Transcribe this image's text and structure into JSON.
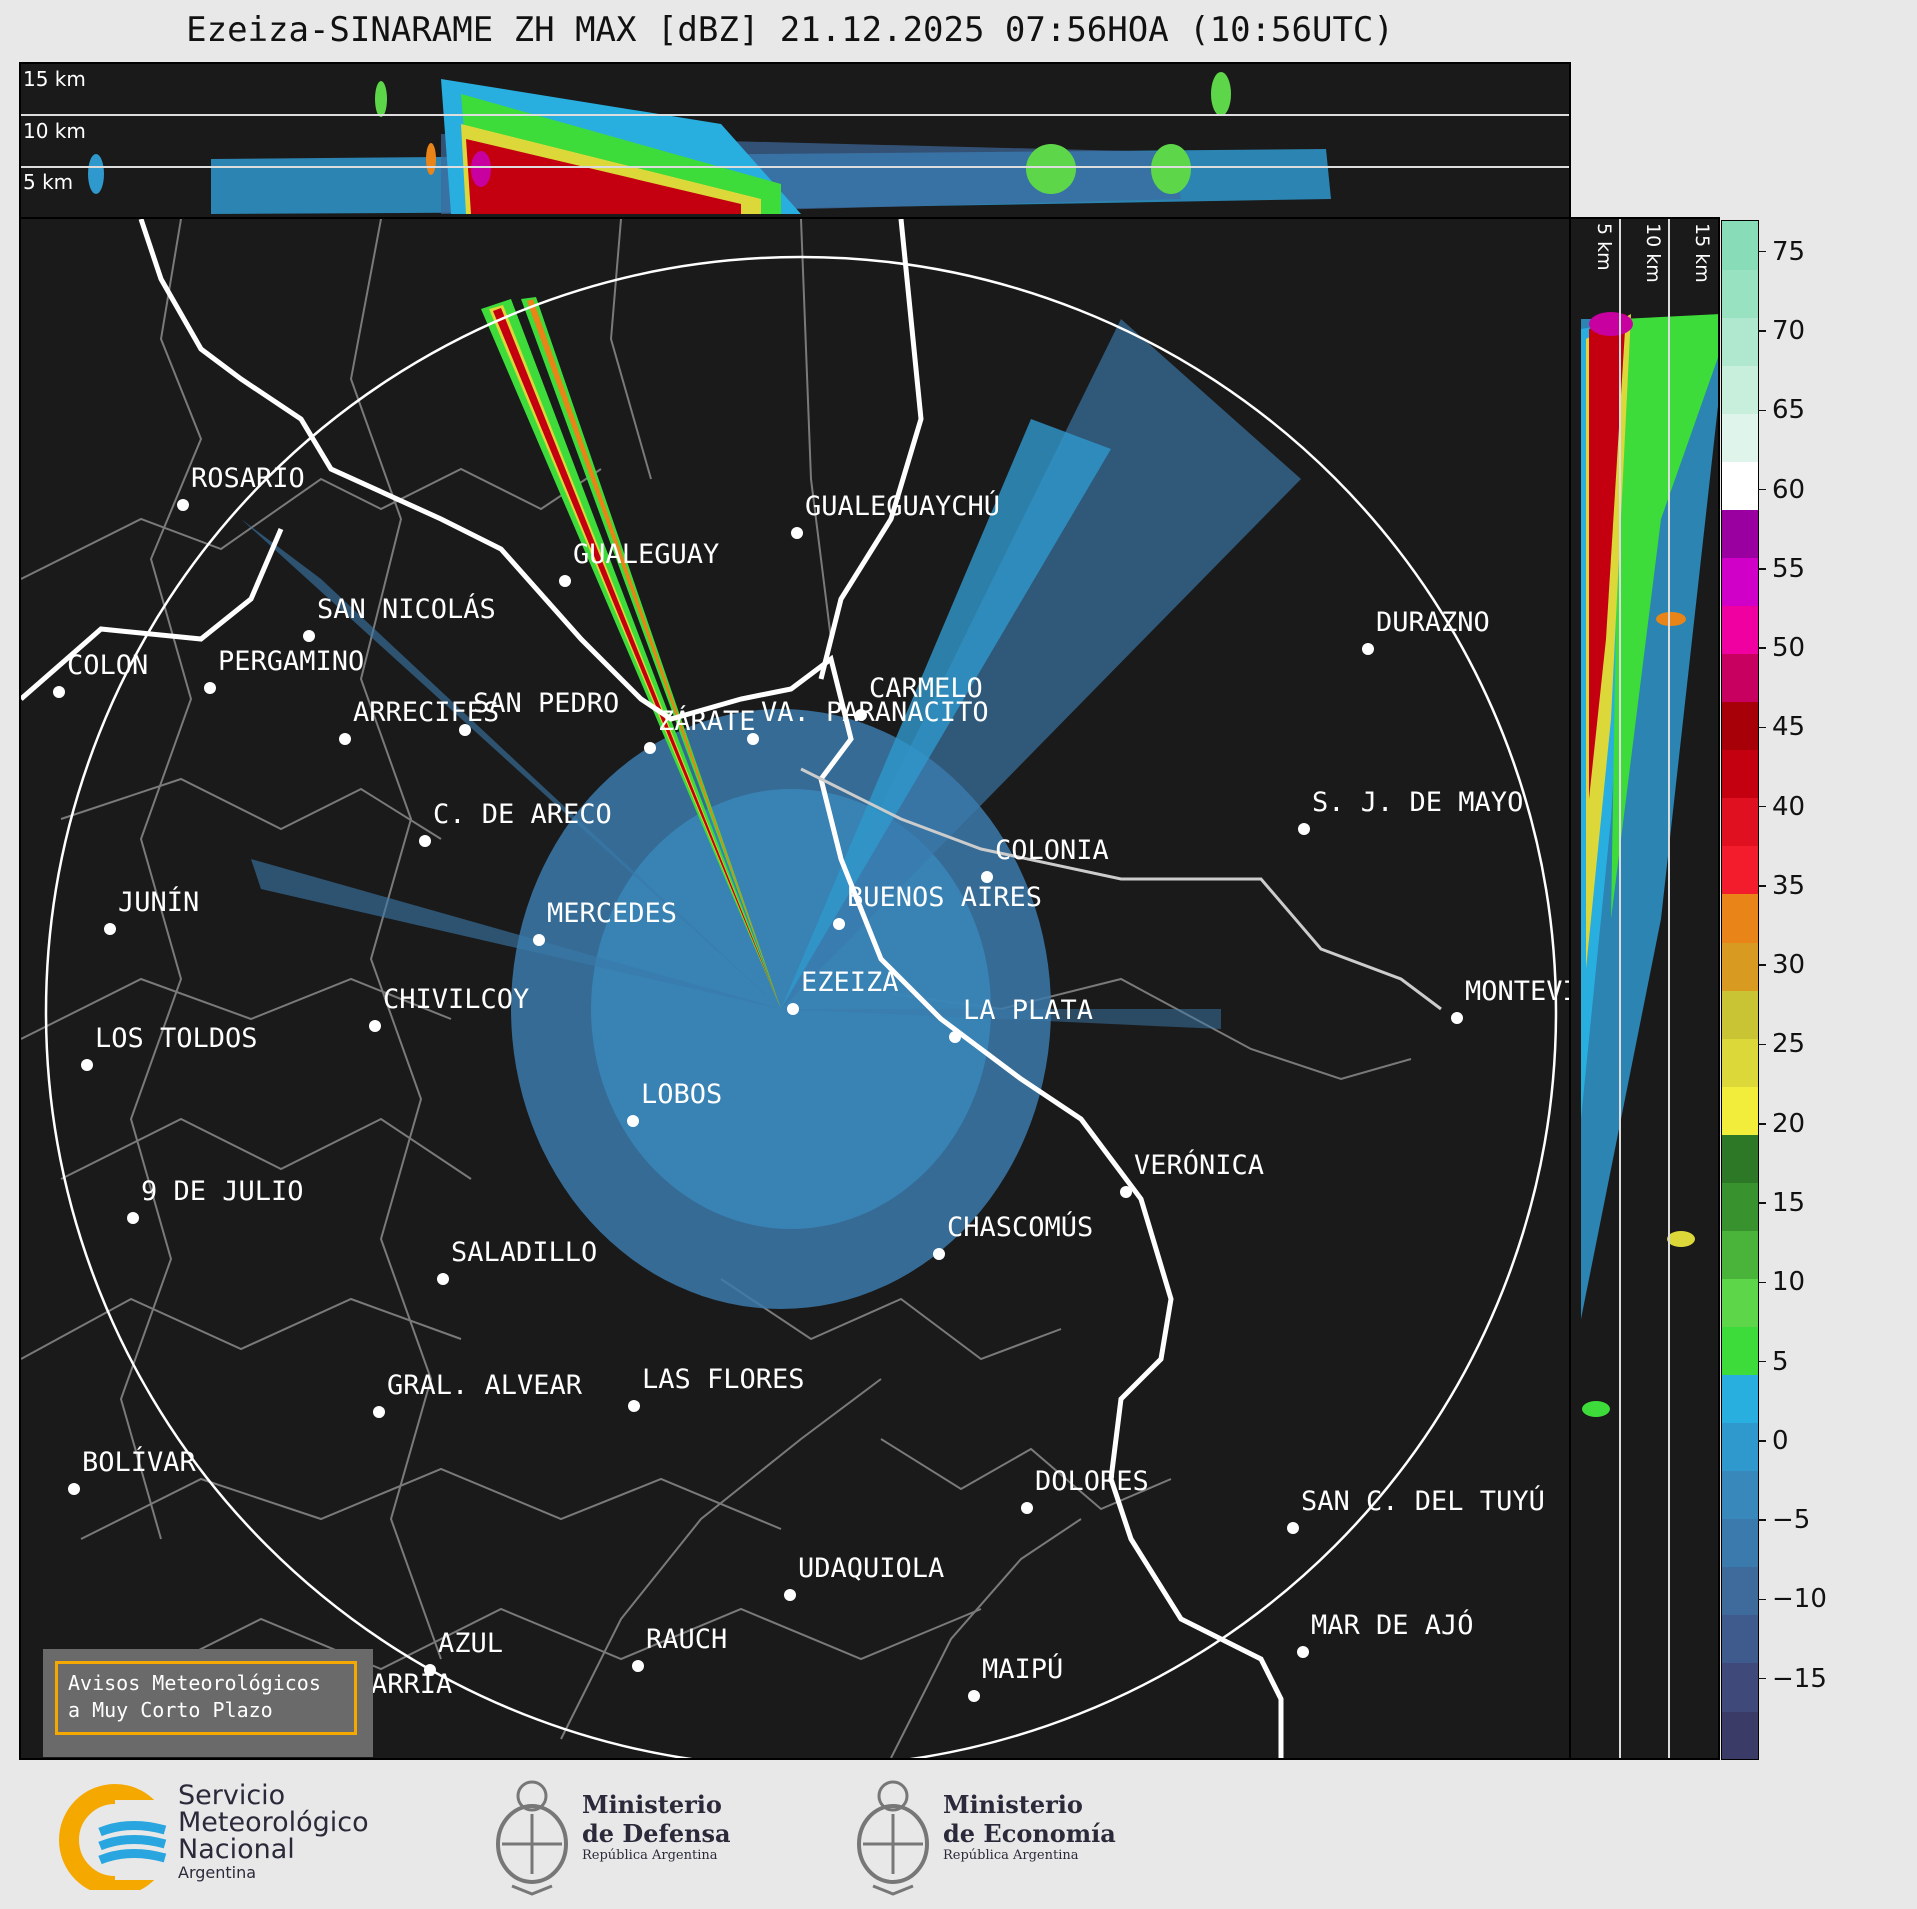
{
  "title": "Ezeiza-SINARAME ZH MAX [dBZ] 21.12.2025 07:56HOA (10:56UTC)",
  "top_panel": {
    "altitudes": [
      "15 km",
      "10 km",
      "5 km"
    ]
  },
  "side_panel": {
    "altitudes": [
      "5 km",
      "10 km",
      "15 km"
    ]
  },
  "colorbar": {
    "ticks": [
      "75",
      "70",
      "65",
      "60",
      "55",
      "50",
      "45",
      "40",
      "35",
      "30",
      "25",
      "20",
      "15",
      "10",
      "5",
      "0",
      "−5",
      "−10",
      "−15"
    ],
    "range": [
      -20,
      77
    ],
    "colors": [
      "#3b3b68",
      "#3f4a7a",
      "#3f5a8c",
      "#3e6a9c",
      "#3b7aac",
      "#3988bc",
      "#2f98cc",
      "#29aee0",
      "#3ddc3a",
      "#5ed64a",
      "#49b33a",
      "#38932f",
      "#2d7826",
      "#f2ec3a",
      "#dcd83a",
      "#c8c434",
      "#d89a20",
      "#e88418",
      "#f21c2c",
      "#e01020",
      "#c40010",
      "#a80008",
      "#c80060",
      "#f000a0",
      "#d000c8",
      "#9a00a0",
      "#ffffff",
      "#dff4ea",
      "#c8eedc",
      "#b0e8cf",
      "#98e2c2",
      "#88dcb8"
    ]
  },
  "map": {
    "radar_site": "EZEIZA",
    "cities": [
      {
        "name": "ROSARIO"
      },
      {
        "name": "GUALEGUAYCHÚ"
      },
      {
        "name": "GUALEGUAY"
      },
      {
        "name": "SAN NICOLÁS"
      },
      {
        "name": "DURAZNO"
      },
      {
        "name": "SAN PEDRO"
      },
      {
        "name": "VA. PARANACITO"
      },
      {
        "name": "COLON"
      },
      {
        "name": "PERGAMINO"
      },
      {
        "name": "CARMELO"
      },
      {
        "name": "ARRECIFES"
      },
      {
        "name": "ZÁRATE"
      },
      {
        "name": "S. J. DE MAYO"
      },
      {
        "name": "C. DE ARECO"
      },
      {
        "name": "COLONIA"
      },
      {
        "name": "JUNÍN"
      },
      {
        "name": "BUENOS AIRES"
      },
      {
        "name": "MERCEDES"
      },
      {
        "name": "EZEIZA"
      },
      {
        "name": "MONTEVIDEO"
      },
      {
        "name": "CHIVILCOY"
      },
      {
        "name": "LA PLATA"
      },
      {
        "name": "LOS TOLDOS"
      },
      {
        "name": "LOBOS"
      },
      {
        "name": "VERÓNICA"
      },
      {
        "name": "9 DE JULIO"
      },
      {
        "name": "CHASCOMÚS"
      },
      {
        "name": "SALADILLO"
      },
      {
        "name": "GRAL. ALVEAR"
      },
      {
        "name": "LAS FLORES"
      },
      {
        "name": "BOLÍVAR"
      },
      {
        "name": "DOLORES"
      },
      {
        "name": "SAN C. DEL TUYÚ"
      },
      {
        "name": "UDAQUIOLA"
      },
      {
        "name": "MAR DE AJÓ"
      },
      {
        "name": "AZUL"
      },
      {
        "name": "RAUCH"
      },
      {
        "name": "MAIPÚ"
      },
      {
        "name": "OLAVARRÍA"
      }
    ]
  },
  "avisos": {
    "line1": "Avisos Meteorológicos",
    "line2": "a Muy Corto Plazo"
  },
  "logos": {
    "smn": {
      "line1": "Servicio",
      "line2": "Meteorológico",
      "line3": "Nacional",
      "line4": "Argentina"
    },
    "defensa": {
      "line1": "Ministerio",
      "line2": "de Defensa",
      "line3": "República Argentina"
    },
    "economia": {
      "line1": "Ministerio",
      "line2": "de Economía",
      "line3": "República Argentina"
    }
  }
}
